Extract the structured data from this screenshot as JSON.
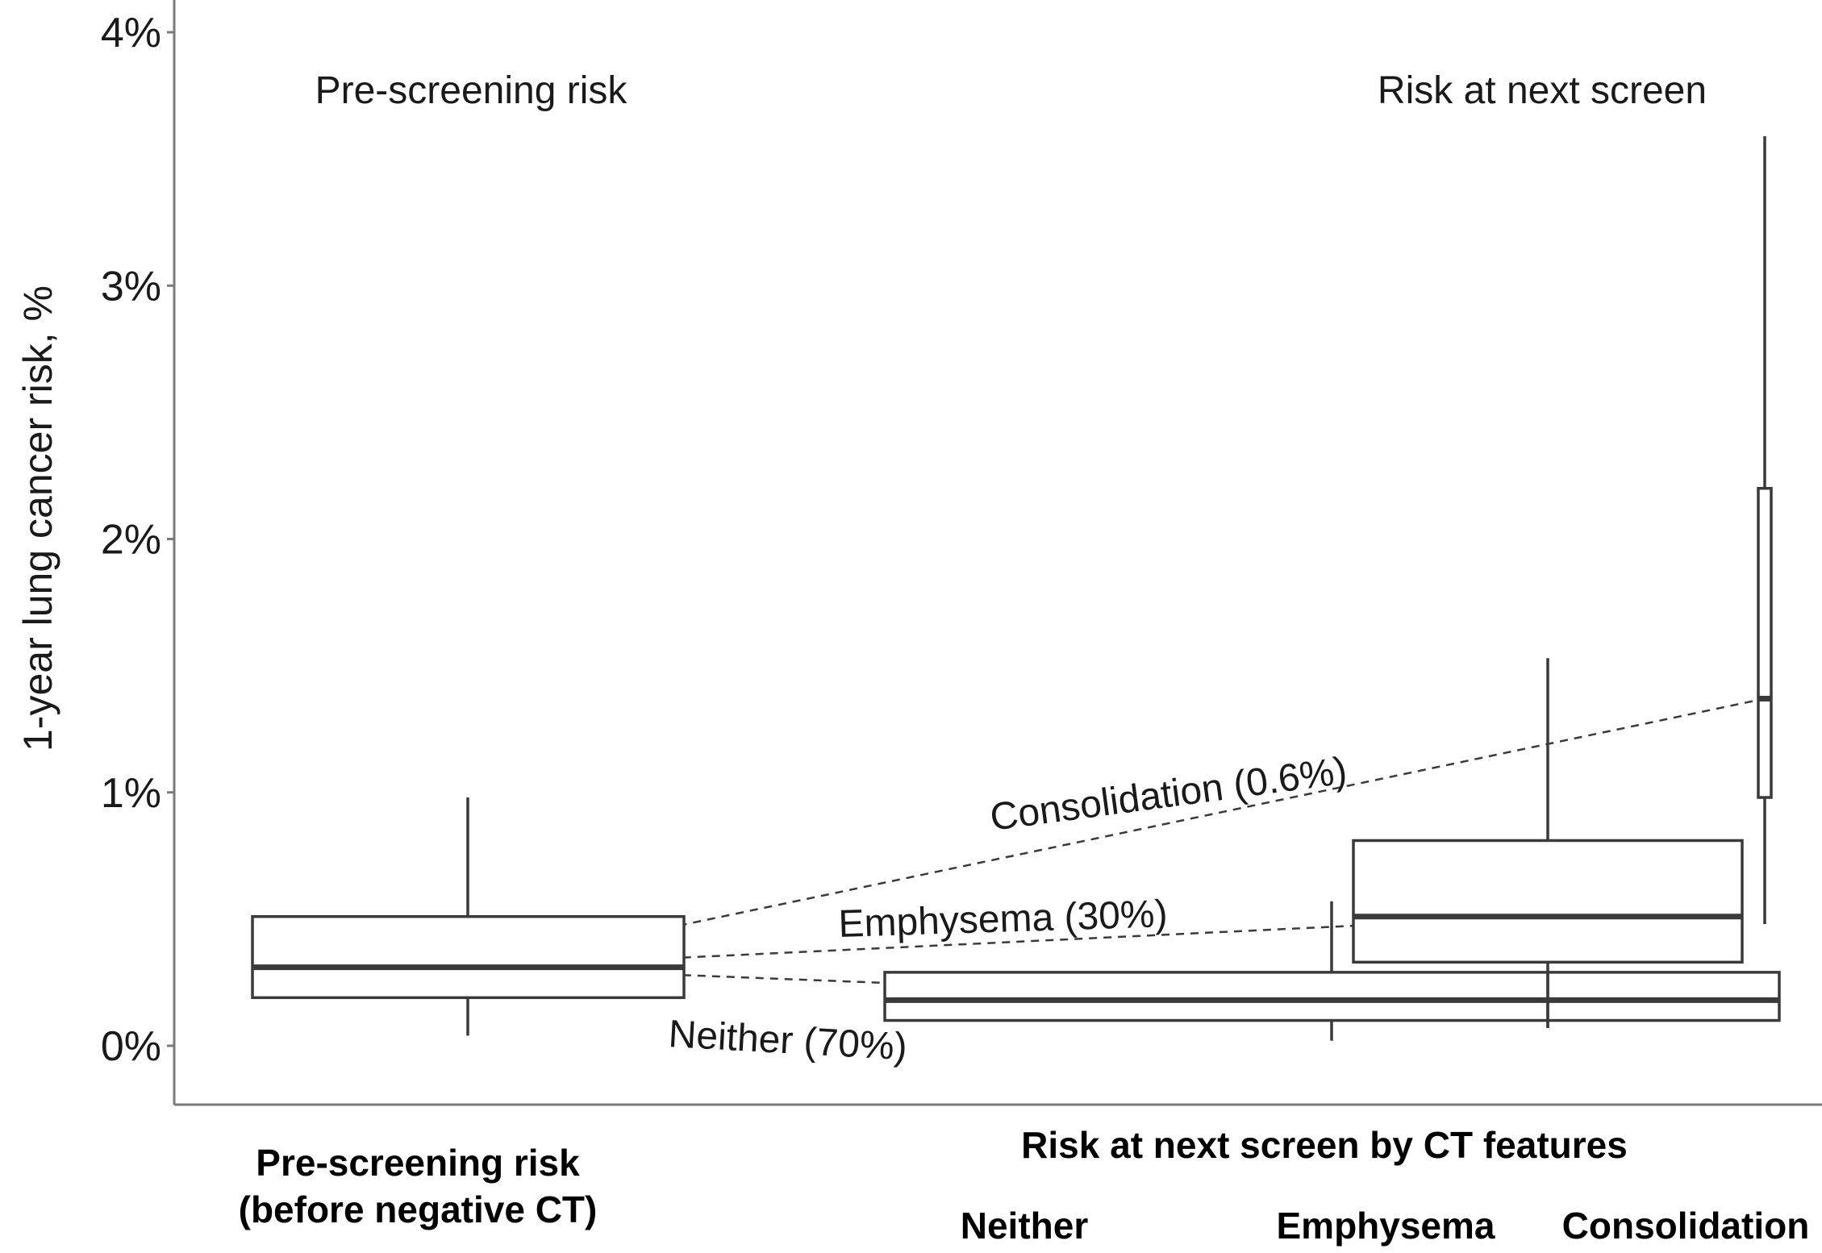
{
  "chart_data": {
    "type": "boxplot",
    "ylabel": "1-year lung cancer risk, %",
    "ylim": [
      -0.2,
      4.1
    ],
    "y_ticks": [
      {
        "value": 0,
        "label": "0%"
      },
      {
        "value": 1,
        "label": "1%"
      },
      {
        "value": 2,
        "label": "2%"
      },
      {
        "value": 3,
        "label": "3%"
      },
      {
        "value": 4,
        "label": "4%"
      }
    ],
    "panel_titles": {
      "left": "Pre-screening risk",
      "right": "Risk at next screen"
    },
    "category_labels": {
      "pre_line1": "Pre-screening risk",
      "pre_line2": "(before negative CT)",
      "group_title": "Risk at next screen by CT features",
      "neither": "Neither",
      "emphysema": "Emphysema",
      "consolidation": "Consolidation"
    },
    "boxes": [
      {
        "key": "pre",
        "q1": 0.19,
        "median": 0.31,
        "q3": 0.51,
        "whisker_low": 0.04,
        "whisker_high": 0.98
      },
      {
        "key": "neither",
        "q1": 0.1,
        "median": 0.18,
        "q3": 0.29,
        "whisker_low": 0.02,
        "whisker_high": 0.57
      },
      {
        "key": "emphysema",
        "q1": 0.33,
        "median": 0.51,
        "q3": 0.81,
        "whisker_low": 0.07,
        "whisker_high": 1.53
      },
      {
        "key": "consolidation",
        "q1": 0.98,
        "median": 1.37,
        "q3": 2.2,
        "whisker_low": 0.48,
        "whisker_high": 3.59
      }
    ],
    "connectors": [
      {
        "from": "pre",
        "to": "consolidation",
        "label": "Consolidation (0.6%)"
      },
      {
        "from": "pre",
        "to": "emphysema",
        "label": "Emphysema (30%)"
      },
      {
        "from": "pre",
        "to": "neither",
        "label": "Neither (70%)"
      }
    ]
  }
}
